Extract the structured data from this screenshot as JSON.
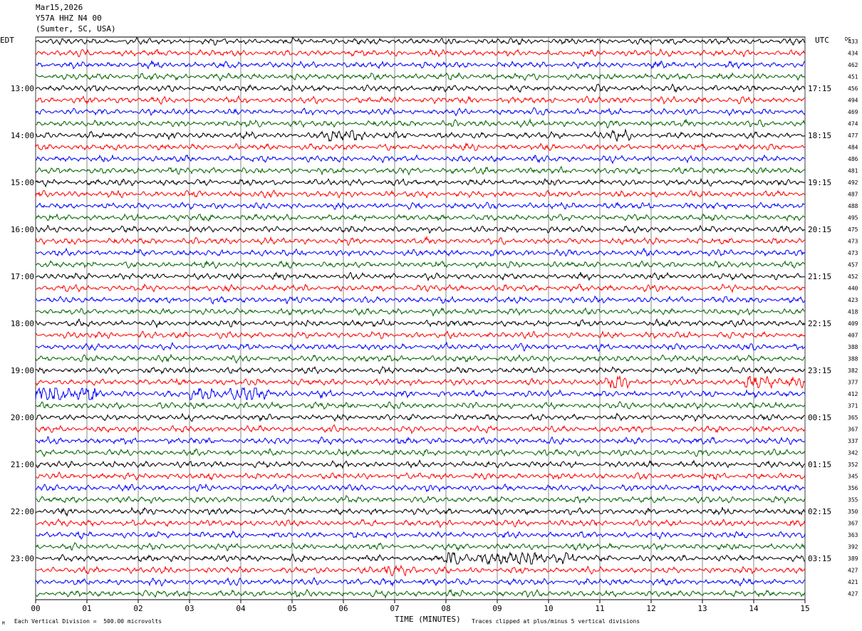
{
  "header": {
    "date": "Mar15,2026",
    "station": "Y57A HHZ N4 00",
    "location": "(Sumter, SC, USA)"
  },
  "labels": {
    "left_tz": "EDT",
    "right_tz": "UTC",
    "dc_label": "DC",
    "footer_left": "Each Vertical Division =  500.00 microvolts",
    "footer_right": "Traces clipped at plus/minus 5 vertical divisions",
    "footer_mark": "M"
  },
  "chart_data": {
    "type": "line",
    "title": "",
    "xlabel": "TIME (MINUTES)",
    "xlim": [
      0,
      15
    ],
    "x_ticks": [
      "00",
      "01",
      "02",
      "03",
      "04",
      "05",
      "06",
      "07",
      "08",
      "09",
      "10",
      "11",
      "12",
      "13",
      "14",
      "15"
    ],
    "grid": "vertical lines at each minute",
    "trace_colors": [
      "#000000",
      "#ff0000",
      "#0000ff",
      "#006400"
    ],
    "left_hour_labels": [
      {
        "row": 4,
        "label": "13:00"
      },
      {
        "row": 8,
        "label": "14:00"
      },
      {
        "row": 12,
        "label": "15:00"
      },
      {
        "row": 16,
        "label": "16:00"
      },
      {
        "row": 20,
        "label": "17:00"
      },
      {
        "row": 24,
        "label": "18:00"
      },
      {
        "row": 28,
        "label": "19:00"
      },
      {
        "row": 32,
        "label": "20:00"
      },
      {
        "row": 36,
        "label": "21:00"
      },
      {
        "row": 40,
        "label": "22:00"
      },
      {
        "row": 44,
        "label": "23:00"
      }
    ],
    "right_hour_labels": [
      {
        "row": 4,
        "label": "17:15"
      },
      {
        "row": 8,
        "label": "18:15"
      },
      {
        "row": 12,
        "label": "19:15"
      },
      {
        "row": 16,
        "label": "20:15"
      },
      {
        "row": 20,
        "label": "21:15"
      },
      {
        "row": 24,
        "label": "22:15"
      },
      {
        "row": 28,
        "label": "23:15"
      },
      {
        "row": 32,
        "label": "00:15"
      },
      {
        "row": 36,
        "label": "01:15"
      },
      {
        "row": 40,
        "label": "02:15"
      },
      {
        "row": 44,
        "label": "03:15"
      }
    ],
    "dc_offsets": [
      433,
      434,
      462,
      451,
      456,
      494,
      469,
      474,
      477,
      484,
      486,
      481,
      492,
      487,
      488,
      495,
      475,
      473,
      473,
      457,
      452,
      440,
      423,
      418,
      409,
      407,
      388,
      388,
      382,
      377,
      412,
      371,
      365,
      367,
      337,
      342,
      352,
      345,
      356,
      355,
      350,
      367,
      363,
      392,
      389,
      427,
      421,
      427
    ],
    "bursts": [
      {
        "row": 8,
        "start_min": 5.7,
        "end_min": 6.4,
        "amp": 2.0
      },
      {
        "row": 8,
        "start_min": 11.2,
        "end_min": 11.6,
        "amp": 1.4
      },
      {
        "row": 29,
        "start_min": 11.2,
        "end_min": 11.6,
        "amp": 2.6
      },
      {
        "row": 29,
        "start_min": 13.8,
        "end_min": 15.0,
        "amp": 1.5
      },
      {
        "row": 30,
        "start_min": 0.0,
        "end_min": 1.2,
        "amp": 2.6
      },
      {
        "row": 30,
        "start_min": 3.0,
        "end_min": 4.6,
        "amp": 2.0
      },
      {
        "row": 44,
        "start_min": 8.0,
        "end_min": 10.5,
        "amp": 1.6
      },
      {
        "row": 45,
        "start_min": 6.8,
        "end_min": 7.5,
        "amp": 1.5
      }
    ]
  }
}
